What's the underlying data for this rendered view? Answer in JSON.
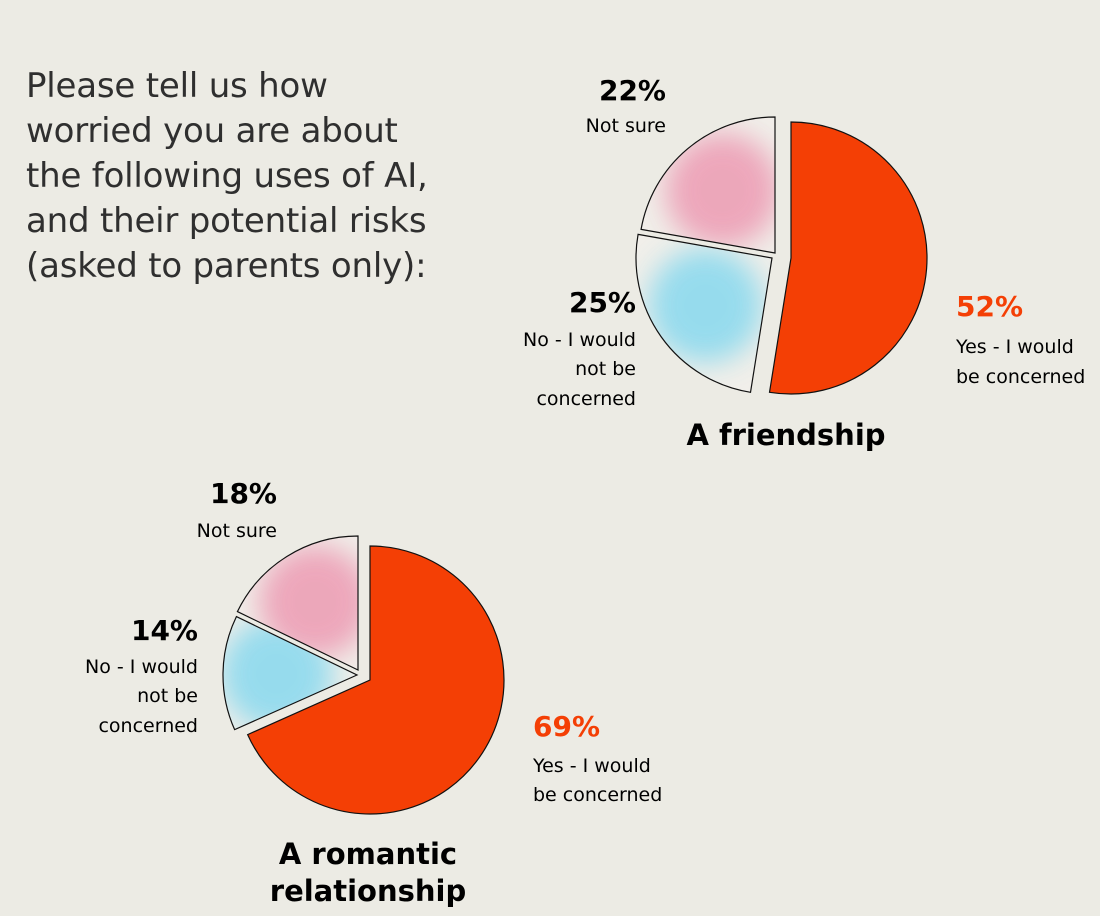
{
  "question": "Please tell us how\nworried you are about\nthe following uses of AI,\nand their potential risks\n(asked to parents only):",
  "colors": {
    "background": "#ecebe4",
    "yes": "#f43f05",
    "no_gradient": "#86d8ee",
    "not_sure_gradient": "#ec9ab2",
    "text": "#1a1a1a"
  },
  "chart_data": [
    {
      "type": "pie",
      "title": "A friendship",
      "slices": [
        {
          "key": "yes",
          "percent_label": "52%",
          "label_lines": [
            "Yes - I would",
            "be concerned"
          ],
          "value": 52
        },
        {
          "key": "no",
          "percent_label": "25%",
          "label_lines": [
            "No - I would",
            "not be",
            "concerned"
          ],
          "value": 25
        },
        {
          "key": "not_sure",
          "percent_label": "22%",
          "label_lines": [
            "Not sure"
          ],
          "value": 22
        }
      ]
    },
    {
      "type": "pie",
      "title_lines": [
        "A romantic",
        "relationship"
      ],
      "slices": [
        {
          "key": "yes",
          "percent_label": "69%",
          "label_lines": [
            "Yes - I would",
            "be concerned"
          ],
          "value": 69
        },
        {
          "key": "no",
          "percent_label": "14%",
          "label_lines": [
            "No - I would",
            "not be",
            "concerned"
          ],
          "value": 14
        },
        {
          "key": "not_sure",
          "percent_label": "18%",
          "label_lines": [
            "Not sure"
          ],
          "value": 18
        }
      ]
    }
  ]
}
